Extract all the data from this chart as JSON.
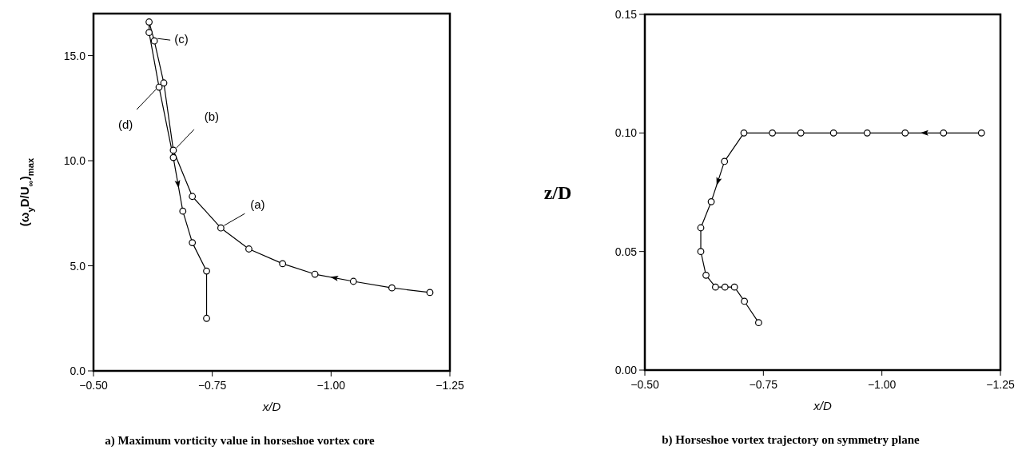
{
  "chart_data": [
    {
      "type": "line",
      "title": "a) Maximum vorticity value in horseshoe vortex core",
      "xlabel": "x/D",
      "ylabel": "(ω$_{y}$D/U$_{∞}$)$_{max}$",
      "series": [
        {
          "color": "#000000",
          "x": [
            -1.208,
            -1.128,
            -1.047,
            -0.966,
            -0.898,
            -0.827,
            -0.768,
            -0.708,
            -0.668,
            -0.648,
            -0.628,
            -0.617,
            -0.617,
            -0.638,
            -0.668,
            -0.688,
            -0.708,
            -0.738,
            -0.738
          ],
          "values": [
            3.73,
            3.95,
            4.26,
            4.6,
            5.1,
            5.8,
            6.8,
            8.3,
            10.5,
            13.7,
            15.7,
            16.6,
            16.1,
            13.5,
            10.15,
            7.6,
            6.1,
            4.75,
            2.5
          ]
        }
      ],
      "xlim": [
        -0.5,
        -1.25
      ],
      "xticks": [
        {
          "value": -0.5,
          "label": "−0.50"
        },
        {
          "value": -0.75,
          "label": "−0.75"
        },
        {
          "value": -1.0,
          "label": "−1.00"
        },
        {
          "value": -1.25,
          "label": "−1.25"
        }
      ],
      "ylim": [
        0,
        17
      ],
      "yticks": [
        {
          "value": 0,
          "label": "0.0"
        },
        {
          "value": 5,
          "label": "5.0"
        },
        {
          "value": 10,
          "label": "10.0"
        },
        {
          "value": 15,
          "label": "15.0"
        }
      ],
      "annotations": [
        {
          "text": "(a)",
          "x": -0.768,
          "y": 6.8
        },
        {
          "text": "(b)",
          "x": -0.668,
          "y": 10.5
        },
        {
          "text": "(c)",
          "x": -0.628,
          "y": 15.7
        },
        {
          "text": "(d)",
          "x": -0.638,
          "y": 13.5
        }
      ],
      "grid": false,
      "marker": "circle",
      "line_style": "solid"
    },
    {
      "type": "line",
      "title": "b) Horseshoe vortex trajectory on symmetry plane",
      "xlabel": "x/D",
      "ylabel": "z/D",
      "series": [
        {
          "color": "#000000",
          "x": [
            -1.21,
            -1.13,
            -1.049,
            -0.969,
            -0.898,
            -0.829,
            -0.769,
            -0.709,
            -0.668,
            -0.64,
            -0.618,
            -0.618,
            -0.629,
            -0.649,
            -0.669,
            -0.689,
            -0.71,
            -0.74
          ],
          "values": [
            0.1,
            0.1,
            0.1,
            0.1,
            0.1,
            0.1,
            0.1,
            0.1,
            0.088,
            0.071,
            0.06,
            0.05,
            0.04,
            0.035,
            0.035,
            0.035,
            0.029,
            0.02
          ]
        }
      ],
      "xlim": [
        -0.5,
        -1.25
      ],
      "xticks": [
        {
          "value": -0.5,
          "label": "−0.50"
        },
        {
          "value": -0.75,
          "label": "−0.75"
        },
        {
          "value": -1.0,
          "label": "−1.00"
        },
        {
          "value": -1.25,
          "label": "−1.25"
        }
      ],
      "ylim": [
        0,
        0.15
      ],
      "yticks": [
        {
          "value": 0,
          "label": "0.00"
        },
        {
          "value": 0.05,
          "label": "0.05"
        },
        {
          "value": 0.1,
          "label": "0.10"
        },
        {
          "value": 0.15,
          "label": "0.15"
        }
      ],
      "grid": false,
      "marker": "circle",
      "line_style": "solid"
    }
  ]
}
